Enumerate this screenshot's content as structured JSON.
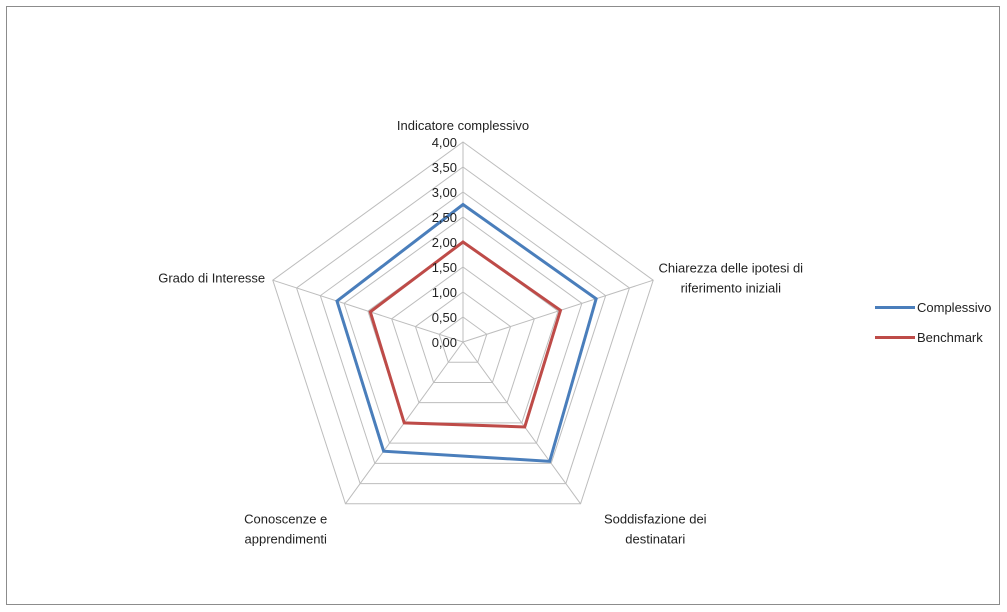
{
  "chart_data": {
    "type": "radar",
    "axes": [
      [
        "Indicatore complessivo"
      ],
      [
        "Chiarezza delle ipotesi di",
        "riferimento iniziali"
      ],
      [
        "Soddisfazione dei",
        "destinatari"
      ],
      [
        "Conoscenze e",
        "apprendimenti"
      ],
      [
        "Grado di Interesse"
      ]
    ],
    "ticks": [
      "0,00",
      "0,50",
      "1,00",
      "1,50",
      "2,00",
      "2,50",
      "3,00",
      "3,50",
      "4,00"
    ],
    "rmax": 4,
    "series": [
      {
        "name": "Complessivo",
        "color": "#4a7ebb",
        "values": [
          2.75,
          2.8,
          2.95,
          2.7,
          2.65
        ]
      },
      {
        "name": "Benchmark",
        "color": "#be4b48",
        "values": [
          2.0,
          2.05,
          2.1,
          2.0,
          1.95
        ]
      }
    ],
    "grid": true,
    "legend_position": "right"
  }
}
